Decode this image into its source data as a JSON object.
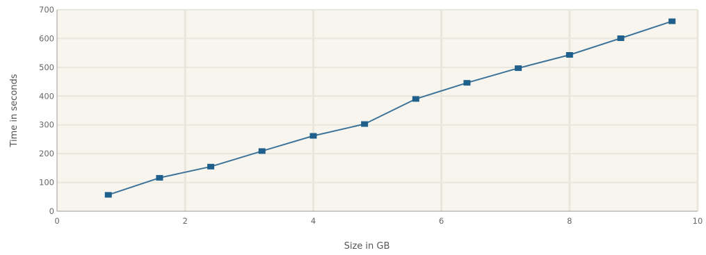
{
  "chart_data": {
    "type": "line",
    "xlabel": "Size in GB",
    "ylabel": "Time in seconds",
    "xlim": [
      0,
      10
    ],
    "ylim": [
      0,
      700
    ],
    "xticks": [
      0,
      2,
      4,
      6,
      8,
      10
    ],
    "yticks": [
      0,
      100,
      200,
      300,
      400,
      500,
      600,
      700
    ],
    "grid": true,
    "legend": "none",
    "series": [
      {
        "x": [
          0.8,
          1.6,
          2.4,
          3.2,
          4.0,
          4.8,
          5.6,
          6.4,
          7.2,
          8.0,
          8.8,
          9.6
        ],
        "y": [
          57,
          116,
          155,
          209,
          262,
          303,
          390,
          446,
          497,
          543,
          601,
          660
        ]
      }
    ],
    "colors": {
      "plot_background": "#f7f5ee",
      "grid": "#e9e6dc",
      "line": "#3d7399",
      "marker": "#1f5f8b",
      "axis": "#999999"
    }
  }
}
